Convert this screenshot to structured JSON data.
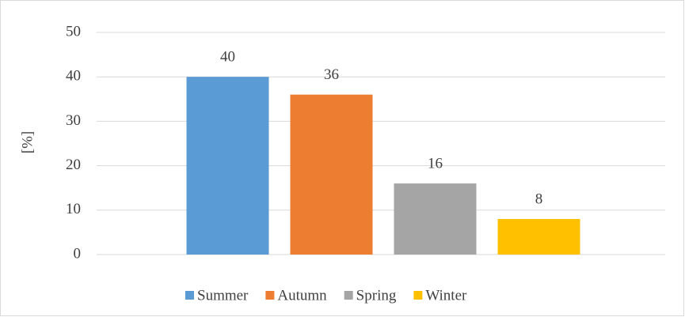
{
  "chart_data": {
    "type": "bar",
    "y_label": "[%]",
    "categories": [
      null
    ],
    "series": [
      {
        "name": "Summer",
        "color": "#5b9bd5",
        "values": [
          40
        ]
      },
      {
        "name": "Autumn",
        "color": "#ed7d31",
        "values": [
          36
        ]
      },
      {
        "name": "Spring",
        "color": "#a5a5a5",
        "values": [
          16
        ]
      },
      {
        "name": "Winter",
        "color": "#ffc000",
        "values": [
          8
        ]
      }
    ],
    "ylim": [
      0,
      50
    ],
    "yticks": [
      0,
      10,
      20,
      30,
      40,
      50
    ],
    "grid": true,
    "legend": "bottom"
  }
}
